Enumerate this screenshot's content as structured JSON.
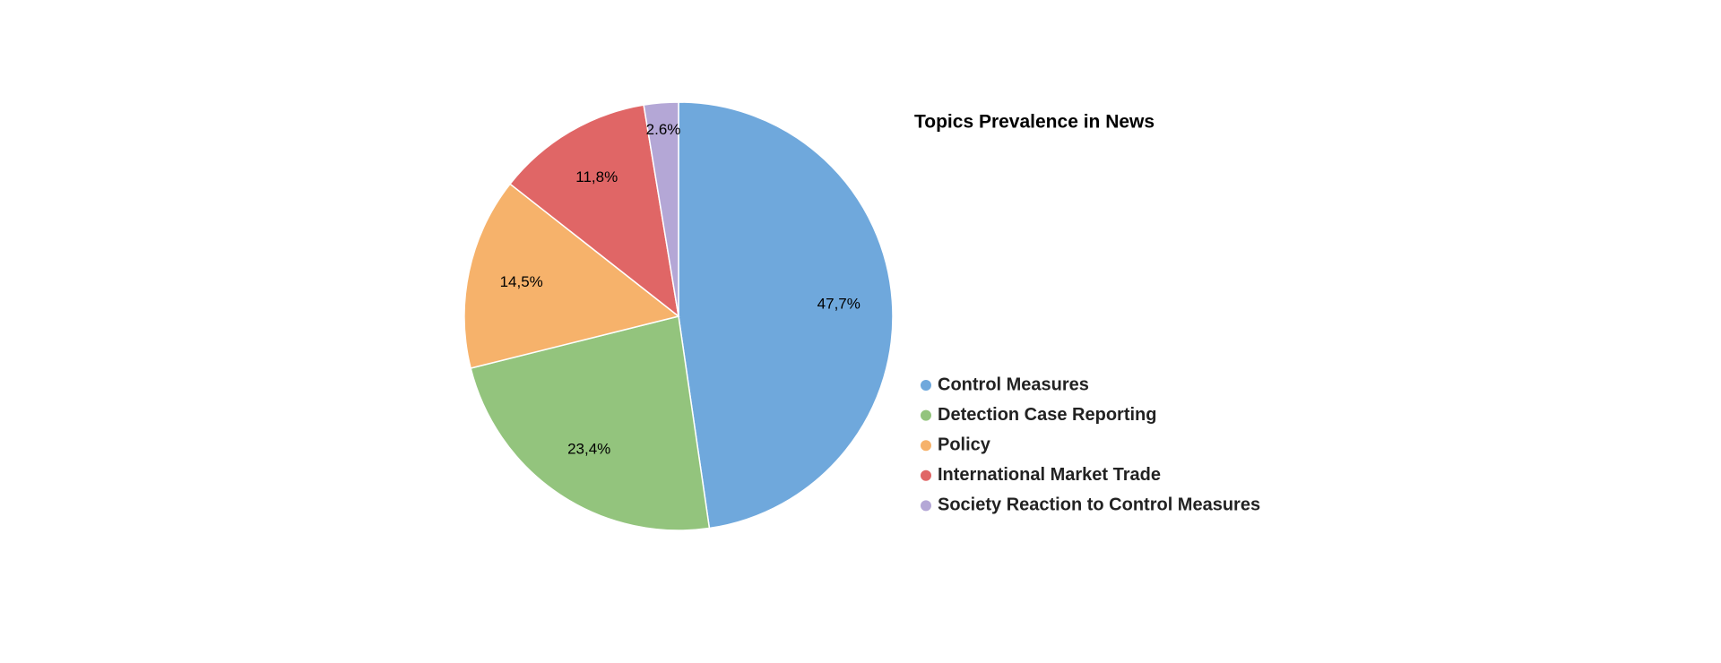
{
  "chart_data": {
    "type": "pie",
    "title": "Topics Prevalence in News",
    "categories": [
      "Control Measures",
      "Detection Case Reporting",
      "Policy",
      "International Market Trade",
      "Society Reaction to Control Measures"
    ],
    "values": [
      47.7,
      23.4,
      14.5,
      11.8,
      2.6
    ],
    "value_labels": [
      "47,7%",
      "23,4%",
      "14,5%",
      "11,8%",
      "2.6%"
    ],
    "colors": [
      "#6fa8dc",
      "#93c47d",
      "#f6b26b",
      "#e06666",
      "#b4a7d6"
    ]
  }
}
